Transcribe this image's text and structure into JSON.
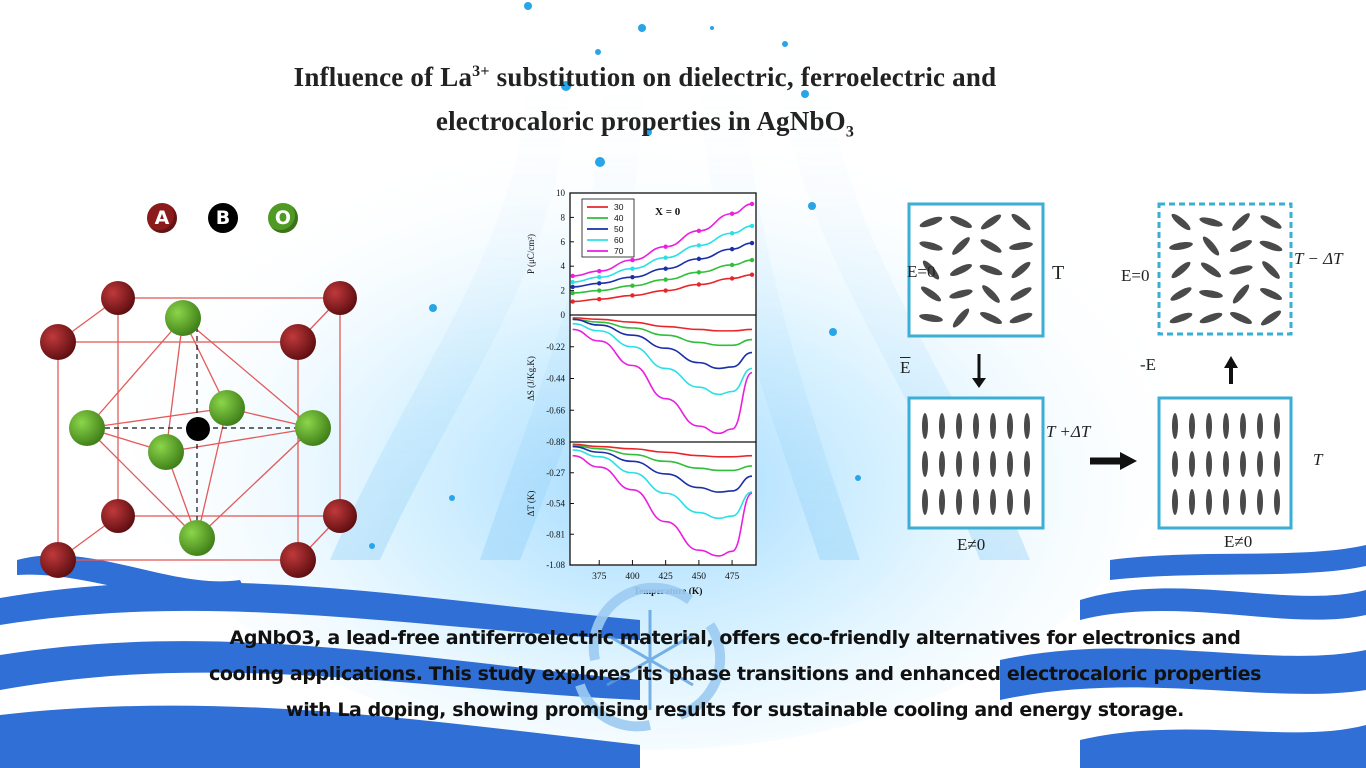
{
  "title": {
    "line1_prefix": "Influence of La",
    "line1_sup": "3+",
    "line1_suffix": " substitution on dielectric, ferroelectric and",
    "line2_prefix": "electrocaloric properties in AgNbO",
    "line2_sub": "3"
  },
  "structure_legend": [
    {
      "letter": "A",
      "color": "#8b1a1a"
    },
    {
      "letter": "B",
      "color": "#000000"
    },
    {
      "letter": "O",
      "color": "#4e9a22"
    }
  ],
  "chart_data": {
    "type": "line",
    "annotation": "X = 0",
    "xlabel": "Temperature (K)",
    "x_ticks": [
      "375",
      "400",
      "425",
      "450",
      "475"
    ],
    "xlim": [
      353,
      493
    ],
    "legend": {
      "placement": "top-left",
      "entries": [
        "30",
        "40",
        "50",
        "60",
        "70"
      ]
    },
    "colors": [
      "#e8262a",
      "#2fbf3a",
      "#1a2fa8",
      "#29e0e6",
      "#ea1fe0"
    ],
    "panels": [
      {
        "ylabel": "P (μC/cm²)",
        "ylabel_lines": [
          "2",
          "P (μC/cm )"
        ],
        "y_ticks": [
          "0",
          "2",
          "4",
          "6",
          "8",
          "10"
        ],
        "ylim": [
          0,
          10
        ],
        "series": [
          {
            "name": "30",
            "x": [
              355,
              375,
              400,
              425,
              450,
              475,
              490
            ],
            "values": [
              1.1,
              1.3,
              1.6,
              2.0,
              2.5,
              3.0,
              3.3
            ]
          },
          {
            "name": "40",
            "x": [
              355,
              375,
              400,
              425,
              450,
              475,
              490
            ],
            "values": [
              1.8,
              2.0,
              2.4,
              2.9,
              3.5,
              4.1,
              4.5
            ]
          },
          {
            "name": "50",
            "x": [
              355,
              375,
              400,
              425,
              450,
              475,
              490
            ],
            "values": [
              2.3,
              2.6,
              3.1,
              3.8,
              4.6,
              5.4,
              5.9
            ]
          },
          {
            "name": "60",
            "x": [
              355,
              375,
              400,
              425,
              450,
              475,
              490
            ],
            "values": [
              2.7,
              3.1,
              3.8,
              4.7,
              5.7,
              6.7,
              7.3
            ]
          },
          {
            "name": "70",
            "x": [
              355,
              375,
              400,
              425,
              450,
              475,
              490
            ],
            "values": [
              3.2,
              3.6,
              4.5,
              5.6,
              6.9,
              8.3,
              9.1
            ]
          }
        ]
      },
      {
        "ylabel": "ΔS (J/Kg.K)",
        "y_ticks": [
          "-0.22",
          "-0.44",
          "-0.66",
          "-0.88"
        ],
        "ylim": [
          -0.88,
          0.0
        ],
        "series": [
          {
            "name": "30",
            "x": [
              355,
              375,
              400,
              425,
              450,
              465,
              475,
              490
            ],
            "values": [
              -0.02,
              -0.03,
              -0.05,
              -0.08,
              -0.1,
              -0.11,
              -0.11,
              -0.1
            ]
          },
          {
            "name": "40",
            "x": [
              355,
              375,
              400,
              425,
              450,
              465,
              475,
              490
            ],
            "values": [
              -0.03,
              -0.05,
              -0.09,
              -0.14,
              -0.19,
              -0.21,
              -0.21,
              -0.17
            ]
          },
          {
            "name": "50",
            "x": [
              355,
              375,
              400,
              425,
              450,
              465,
              475,
              490
            ],
            "values": [
              -0.03,
              -0.07,
              -0.14,
              -0.23,
              -0.33,
              -0.37,
              -0.36,
              -0.26
            ]
          },
          {
            "name": "60",
            "x": [
              355,
              375,
              400,
              425,
              450,
              465,
              475,
              490
            ],
            "values": [
              -0.06,
              -0.11,
              -0.22,
              -0.37,
              -0.5,
              -0.55,
              -0.53,
              -0.37
            ]
          },
          {
            "name": "70",
            "x": [
              355,
              375,
              400,
              425,
              450,
              465,
              475,
              490
            ],
            "values": [
              -0.1,
              -0.18,
              -0.35,
              -0.58,
              -0.77,
              -0.82,
              -0.79,
              -0.4
            ]
          }
        ]
      },
      {
        "ylabel": "ΔT (K)",
        "y_ticks": [
          "-0.27",
          "-0.54",
          "-0.81",
          "-1.08"
        ],
        "ylim": [
          -1.08,
          0.0
        ],
        "series": [
          {
            "name": "30",
            "x": [
              355,
              375,
              400,
              425,
              450,
              465,
              475,
              490
            ],
            "values": [
              -0.02,
              -0.04,
              -0.06,
              -0.09,
              -0.12,
              -0.13,
              -0.13,
              -0.12
            ]
          },
          {
            "name": "40",
            "x": [
              355,
              375,
              400,
              425,
              450,
              465,
              475,
              490
            ],
            "values": [
              -0.03,
              -0.06,
              -0.11,
              -0.17,
              -0.23,
              -0.25,
              -0.25,
              -0.21
            ]
          },
          {
            "name": "50",
            "x": [
              355,
              375,
              400,
              425,
              450,
              465,
              475,
              490
            ],
            "values": [
              -0.04,
              -0.09,
              -0.17,
              -0.28,
              -0.4,
              -0.44,
              -0.43,
              -0.3
            ]
          },
          {
            "name": "60",
            "x": [
              355,
              375,
              400,
              425,
              450,
              465,
              475,
              490
            ],
            "values": [
              -0.07,
              -0.13,
              -0.27,
              -0.45,
              -0.62,
              -0.67,
              -0.65,
              -0.44
            ]
          },
          {
            "name": "70",
            "x": [
              355,
              375,
              400,
              425,
              450,
              465,
              475,
              490
            ],
            "values": [
              -0.12,
              -0.22,
              -0.42,
              -0.7,
              -0.95,
              -1.0,
              -0.96,
              -0.45
            ]
          }
        ]
      }
    ]
  },
  "cycle_diagram": {
    "state1": {
      "field": "E=0",
      "temp": "T"
    },
    "state2": {
      "field": "E≠0",
      "temp": "T +ΔT"
    },
    "state3": {
      "field": "E≠0",
      "temp": "T"
    },
    "state4": {
      "field": "E=0",
      "temp": "T − ΔT"
    },
    "apply_field": "E",
    "remove_field": "-E"
  },
  "summary": {
    "line1": "AgNbO3, a lead-free antiferroelectric material, offers eco-friendly alternatives for electronics and",
    "line2": "cooling applications. This study explores its phase transitions and enhanced electrocaloric properties",
    "line3": "with La doping, showing promising results for sustainable cooling and energy storage."
  },
  "colors": {
    "wave": "#2f6fd6",
    "box": "#3aaed3",
    "glow": "#8fd3ff"
  }
}
